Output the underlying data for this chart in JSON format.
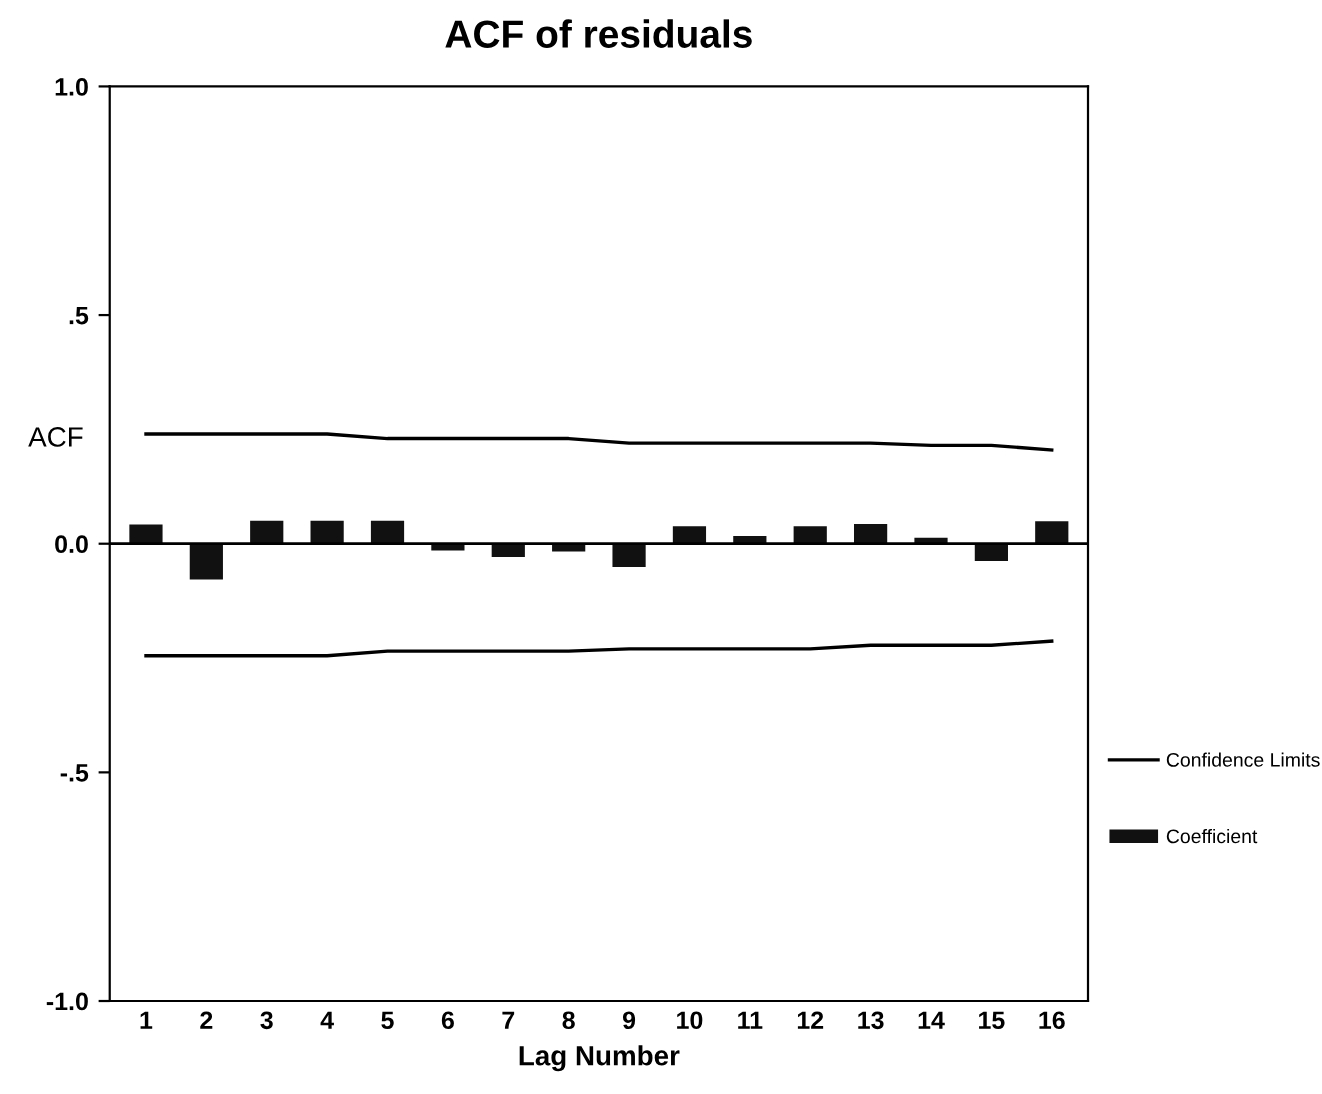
{
  "chart_data": {
    "type": "bar",
    "title": "ACF of residuals",
    "xlabel": "Lag Number",
    "ylabel": "ACF",
    "categories": [
      "1",
      "2",
      "3",
      "4",
      "5",
      "6",
      "7",
      "8",
      "9",
      "10",
      "11",
      "12",
      "13",
      "14",
      "15",
      "16"
    ],
    "series": [
      {
        "name": "Coefficient",
        "color": "#111111",
        "values": [
          0.042,
          -0.078,
          0.05,
          0.05,
          0.05,
          -0.015,
          -0.029,
          -0.017,
          -0.051,
          0.038,
          0.017,
          0.038,
          0.043,
          0.013,
          -0.038,
          0.049
        ]
      },
      {
        "name": "Confidence Limits",
        "type": "line",
        "color": "#000000",
        "values": [
          0.24,
          0.24,
          0.24,
          0.24,
          0.23,
          0.23,
          0.23,
          0.23,
          0.22,
          0.22,
          0.22,
          0.22,
          0.22,
          0.215,
          0.215,
          0.205
        ]
      },
      {
        "type": "line",
        "color": "#000000",
        "values": [
          -0.245,
          -0.245,
          -0.245,
          -0.245,
          -0.235,
          -0.235,
          -0.235,
          -0.235,
          -0.23,
          -0.23,
          -0.23,
          -0.23,
          -0.222,
          -0.222,
          -0.222,
          -0.213
        ]
      }
    ],
    "ylim": [
      -1.0,
      1.0
    ],
    "yticks": [
      {
        "value": 1.0,
        "label": "1.0"
      },
      {
        "value": 0.5,
        "label": ".5"
      },
      {
        "value": 0.0,
        "label": "0.0"
      },
      {
        "value": -0.5,
        "label": "-.5"
      },
      {
        "value": -1.0,
        "label": "-1.0"
      }
    ],
    "legend": "right"
  }
}
